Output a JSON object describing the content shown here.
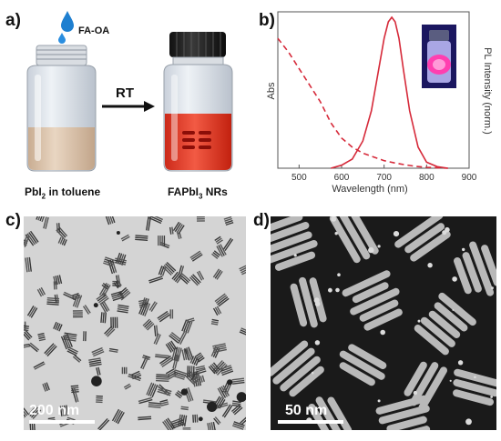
{
  "panels": {
    "a": {
      "label": "a)",
      "reagent": "FA-OA",
      "arrow_label": "RT",
      "left_caption_main": "PbI",
      "left_caption_sub": "2",
      "left_caption_tail": " in toluene",
      "right_caption_main": "FAPbI",
      "right_caption_sub": "3",
      "right_caption_tail": " NRs"
    },
    "b": {
      "label": "b)"
    },
    "c": {
      "label": "c)",
      "scale_label": "200 nm"
    },
    "d": {
      "label": "d)",
      "scale_label": "50 nm"
    }
  },
  "chart_data": {
    "type": "line",
    "xlabel": "Wavelength (nm)",
    "ylabel_left": "Abs",
    "ylabel_right": "PL Intensity (norm.)",
    "xlim": [
      450,
      900
    ],
    "x_ticks": [
      500,
      600,
      700,
      800,
      900
    ],
    "color": "#d62a3a",
    "series": [
      {
        "style": "dashed",
        "x": [
          450,
          475,
          500,
          525,
          550,
          575,
          600,
          625,
          650,
          675,
          700,
          725,
          750,
          775,
          800,
          825,
          850
        ],
        "y": [
          0.86,
          0.77,
          0.66,
          0.55,
          0.44,
          0.3,
          0.2,
          0.14,
          0.1,
          0.075,
          0.05,
          0.035,
          0.022,
          0.012,
          0.006,
          0.003,
          0.0
        ]
      },
      {
        "style": "solid",
        "x": [
          575,
          600,
          625,
          650,
          670,
          685,
          700,
          710,
          718,
          726,
          735,
          745,
          760,
          780,
          800,
          825,
          850
        ],
        "y": [
          0.0,
          0.02,
          0.06,
          0.18,
          0.38,
          0.62,
          0.86,
          0.97,
          1.0,
          0.97,
          0.86,
          0.66,
          0.38,
          0.14,
          0.04,
          0.01,
          0.0
        ]
      }
    ]
  }
}
